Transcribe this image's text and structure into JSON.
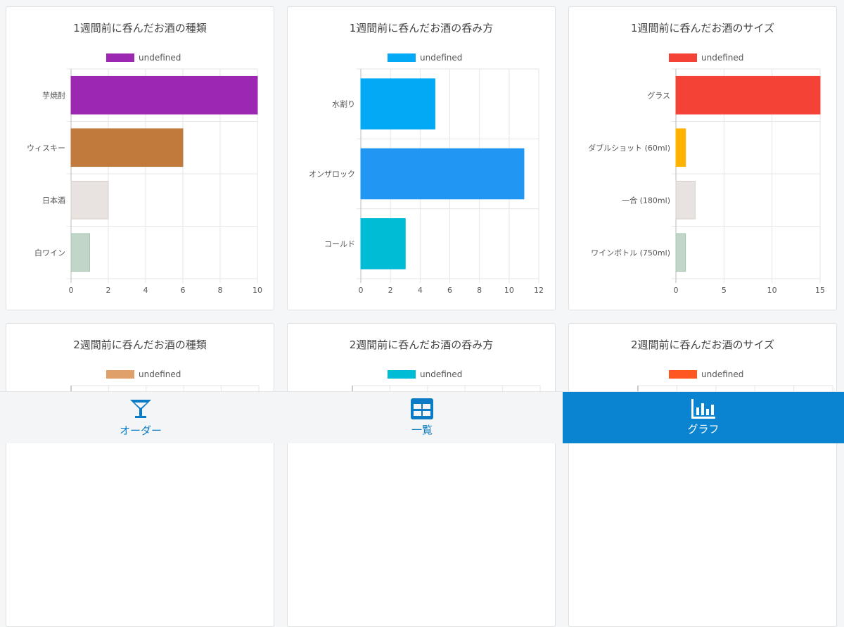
{
  "cards": [
    {
      "title": "1週間前に呑んだお酒の種類",
      "legend": "undefined",
      "legend_color": "#9c27b0",
      "chart_data": {
        "type": "bar",
        "orientation": "horizontal",
        "categories": [
          "芋焼酎",
          "ウィスキー",
          "日本酒",
          "白ワイン"
        ],
        "values": [
          10,
          6,
          2,
          1
        ],
        "colors": [
          "#9c27b0",
          "#c07a3c",
          "#e8e3e0",
          "#c1d6c8"
        ],
        "xlim": [
          0,
          10
        ],
        "xticks": [
          0,
          2,
          4,
          6,
          8,
          10
        ],
        "legend": [
          "undefined"
        ]
      }
    },
    {
      "title": "1週間前に呑んだお酒の呑み方",
      "legend": "undefined",
      "legend_color": "#03a9f4",
      "chart_data": {
        "type": "bar",
        "orientation": "horizontal",
        "categories": [
          "水割り",
          "オンザロック",
          "コールド"
        ],
        "values": [
          5,
          11,
          3
        ],
        "colors": [
          "#03a9f4",
          "#2196f3",
          "#00bcd4"
        ],
        "xlim": [
          0,
          12
        ],
        "xticks": [
          0,
          2,
          4,
          6,
          8,
          10,
          12
        ],
        "legend": [
          "undefined"
        ]
      }
    },
    {
      "title": "1週間前に呑んだお酒のサイズ",
      "legend": "undefined",
      "legend_color": "#f44336",
      "chart_data": {
        "type": "bar",
        "orientation": "horizontal",
        "categories": [
          "グラス",
          "ダブルショット (60ml)",
          "一合 (180ml)",
          "ワインボトル (750ml)"
        ],
        "values": [
          15,
          1,
          2,
          1
        ],
        "colors": [
          "#f44336",
          "#ffb300",
          "#e8e3e0",
          "#c1d6c8"
        ],
        "xlim": [
          0,
          15
        ],
        "xticks": [
          0,
          5,
          10,
          15
        ],
        "legend": [
          "undefined"
        ]
      }
    },
    {
      "title": "2週間前に呑んだお酒の種類",
      "legend": "undefined",
      "legend_color": "#e0a06a",
      "chart_data": null
    },
    {
      "title": "2週間前に呑んだお酒の呑み方",
      "legend": "undefined",
      "legend_color": "#00bcd4",
      "chart_data": null
    },
    {
      "title": "2週間前に呑んだお酒のサイズ",
      "legend": "undefined",
      "legend_color": "#ff5722",
      "chart_data": null
    }
  ],
  "nav": {
    "order_label": "オーダー",
    "list_label": "一覧",
    "graph_label": "グラフ",
    "active": "graph"
  },
  "colors": {
    "accent": "#0a84d0",
    "nav_text": "#0a7bc4"
  }
}
